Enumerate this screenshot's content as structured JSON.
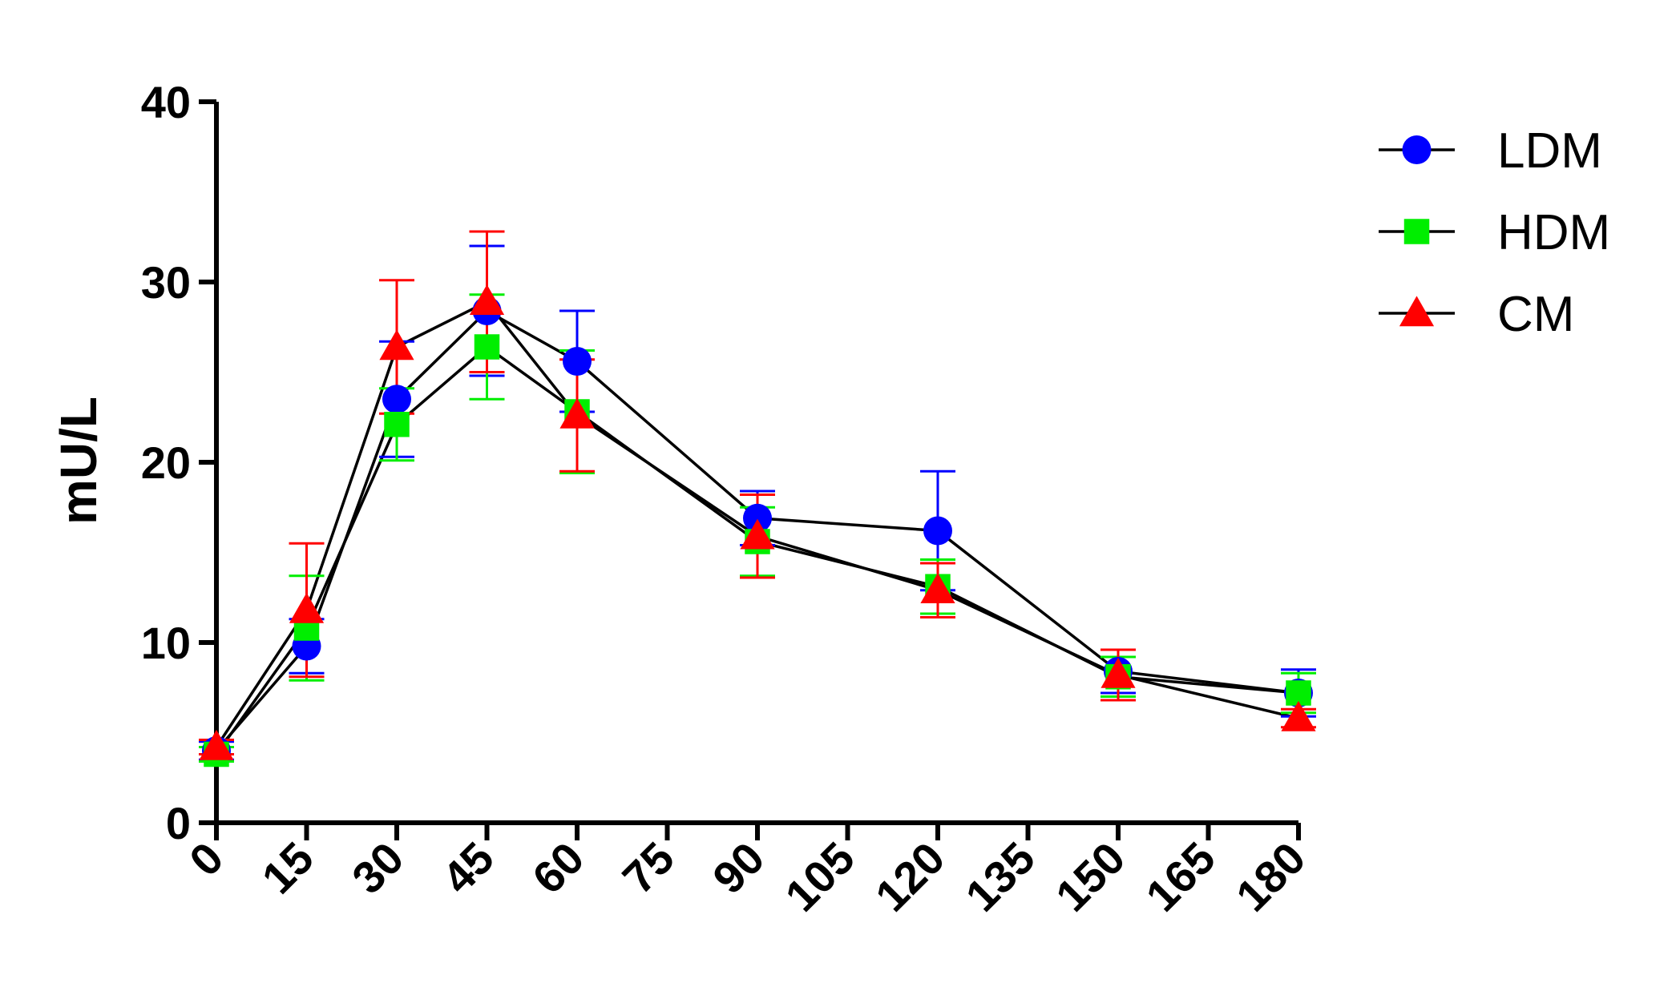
{
  "chart_data": {
    "type": "line",
    "title": "",
    "xlabel": "",
    "ylabel": "mU/L",
    "xlim": [
      0,
      180
    ],
    "ylim": [
      0,
      40
    ],
    "x_ticks": [
      "0",
      "15",
      "30",
      "45",
      "60",
      "75",
      "90",
      "105",
      "120",
      "135",
      "150",
      "165",
      "180"
    ],
    "y_ticks": [
      "0",
      "10",
      "20",
      "30",
      "40"
    ],
    "grid": false,
    "legend_position": "top-right",
    "error_bars": true,
    "x": [
      0,
      15,
      30,
      45,
      60,
      90,
      120,
      150,
      180
    ],
    "series": [
      {
        "name": "LDM",
        "color": "#0000ff",
        "marker": "circle",
        "values": [
          4.0,
          9.8,
          23.5,
          28.4,
          25.6,
          16.9,
          16.2,
          8.4,
          7.2
        ],
        "errors": [
          0.5,
          1.5,
          3.2,
          3.6,
          2.8,
          1.5,
          3.3,
          1.2,
          1.3
        ]
      },
      {
        "name": "HDM",
        "color": "#00ee00",
        "marker": "square",
        "values": [
          3.8,
          10.8,
          22.1,
          26.4,
          22.8,
          15.6,
          13.1,
          8.1,
          7.2
        ],
        "errors": [
          0.4,
          2.9,
          2.0,
          2.9,
          3.4,
          1.9,
          1.5,
          1.1,
          1.1
        ]
      },
      {
        "name": "CM",
        "color": "#ff0000",
        "marker": "triangle",
        "values": [
          4.2,
          11.8,
          26.4,
          28.9,
          22.6,
          15.9,
          12.9,
          8.2,
          5.8
        ],
        "errors": [
          0.4,
          3.7,
          3.7,
          3.9,
          3.1,
          2.3,
          1.5,
          1.4,
          0.5
        ]
      }
    ]
  }
}
